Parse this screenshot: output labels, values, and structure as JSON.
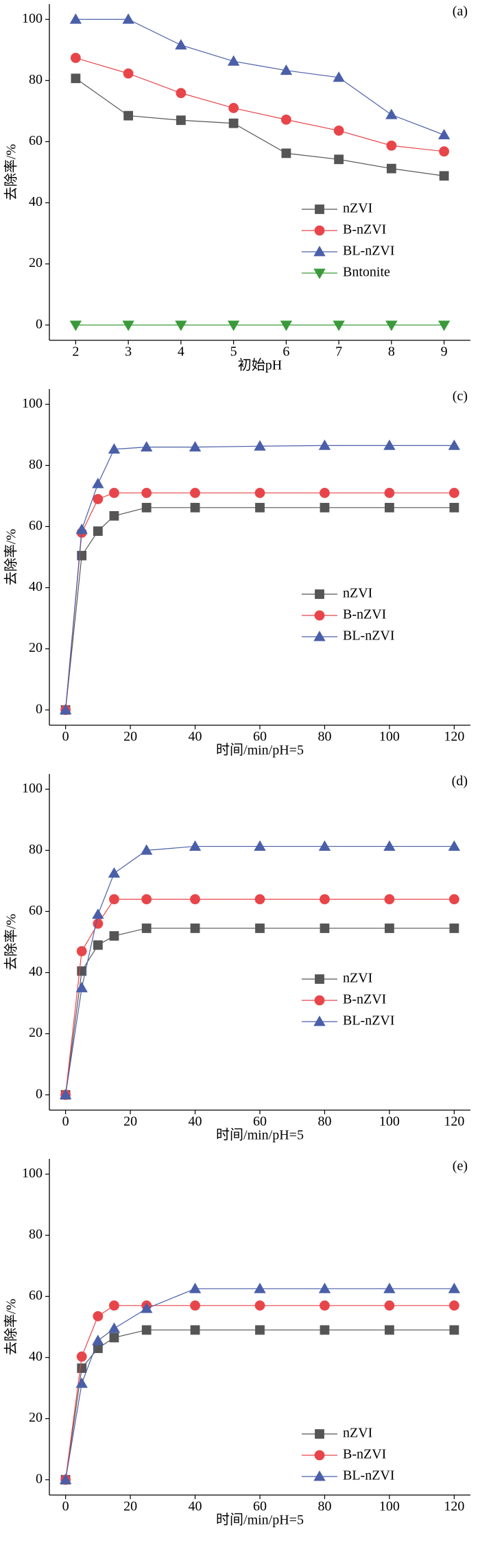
{
  "chart_data": [
    {
      "type": "line",
      "label": "(a)",
      "xlabel": "初始pH",
      "ylabel": "去除率/%",
      "x": [
        2,
        3,
        4,
        5,
        6,
        7,
        8,
        9
      ],
      "xlim": [
        1.5,
        9.5
      ],
      "xticks": [
        2,
        3,
        4,
        5,
        6,
        7,
        8,
        9
      ],
      "ylim": [
        -5,
        105
      ],
      "yticks": [
        0,
        20,
        40,
        60,
        80,
        100
      ],
      "legend": "center right",
      "series": [
        {
          "name": "nZVI",
          "color": "#555555",
          "marker": "square",
          "values": [
            80.7,
            68.5,
            67,
            66,
            56.2,
            54.2,
            51.2,
            48.8
          ]
        },
        {
          "name": "B-nZVI",
          "color": "#e8454a",
          "marker": "circle",
          "values": [
            87.4,
            82.3,
            75.9,
            71,
            67.2,
            63.6,
            58.7,
            56.8
          ]
        },
        {
          "name": "BL-nZVI",
          "color": "#4a5fa8",
          "marker": "triangle-up",
          "values": [
            100,
            100,
            91.6,
            86.3,
            83.3,
            81,
            68.8,
            62.2
          ]
        },
        {
          "name": "Bntonite",
          "color": "#3a9a3a",
          "marker": "triangle-down",
          "values": [
            0,
            0,
            0,
            0,
            0,
            0,
            0,
            0
          ]
        }
      ]
    },
    {
      "type": "line",
      "label": "(c)",
      "xlabel": "时间/min/pH=5",
      "ylabel": "去除率/%",
      "x": [
        0,
        5,
        10,
        15,
        25,
        40,
        60,
        80,
        100,
        120
      ],
      "xlim": [
        -5,
        125
      ],
      "xticks": [
        0,
        20,
        40,
        60,
        80,
        100,
        120
      ],
      "ylim": [
        -5,
        105
      ],
      "yticks": [
        0,
        20,
        40,
        60,
        80,
        100
      ],
      "legend": "center right",
      "series": [
        {
          "name": "nZVI",
          "color": "#555555",
          "marker": "square",
          "values": [
            0,
            50.5,
            58.5,
            63.5,
            66.2,
            66.2,
            66.2,
            66.2,
            66.2,
            66.2
          ]
        },
        {
          "name": "B-nZVI",
          "color": "#e8454a",
          "marker": "circle",
          "values": [
            0,
            58,
            69,
            71,
            71,
            71,
            71,
            71,
            71,
            71
          ]
        },
        {
          "name": "BL-nZVI",
          "color": "#4a5fa8",
          "marker": "triangle-up",
          "values": [
            0,
            59,
            74,
            85.3,
            86,
            86,
            86.3,
            86.5,
            86.5,
            86.5
          ]
        }
      ]
    },
    {
      "type": "line",
      "label": "(d)",
      "xlabel": "时间/min/pH=5",
      "ylabel": "去除率/%",
      "x": [
        0,
        5,
        10,
        15,
        25,
        40,
        60,
        80,
        100,
        120
      ],
      "xlim": [
        -5,
        125
      ],
      "xticks": [
        0,
        20,
        40,
        60,
        80,
        100,
        120
      ],
      "ylim": [
        -5,
        105
      ],
      "yticks": [
        0,
        20,
        40,
        60,
        80,
        100
      ],
      "legend": "center right",
      "series": [
        {
          "name": "nZVI",
          "color": "#555555",
          "marker": "square",
          "values": [
            0,
            40.5,
            49,
            52,
            54.5,
            54.5,
            54.5,
            54.5,
            54.5,
            54.5
          ]
        },
        {
          "name": "B-nZVI",
          "color": "#e8454a",
          "marker": "circle",
          "values": [
            0,
            47,
            56,
            64,
            64,
            64,
            64,
            64,
            64,
            64
          ]
        },
        {
          "name": "BL-nZVI",
          "color": "#4a5fa8",
          "marker": "triangle-up",
          "values": [
            0,
            35,
            59,
            72.5,
            80,
            81.3,
            81.3,
            81.3,
            81.3,
            81.3
          ]
        }
      ]
    },
    {
      "type": "line",
      "label": "(e)",
      "xlabel": "时间/min/pH=5",
      "ylabel": "去除率/%",
      "x": [
        0,
        5,
        10,
        15,
        25,
        40,
        60,
        80,
        100,
        120
      ],
      "xlim": [
        -5,
        125
      ],
      "xticks": [
        0,
        20,
        40,
        60,
        80,
        100,
        120
      ],
      "ylim": [
        -5,
        105
      ],
      "yticks": [
        0,
        20,
        40,
        60,
        80,
        100
      ],
      "legend": "lower right",
      "series": [
        {
          "name": "nZVI",
          "color": "#555555",
          "marker": "square",
          "values": [
            0,
            36.5,
            43,
            46.5,
            49,
            49,
            49,
            49,
            49,
            49
          ]
        },
        {
          "name": "B-nZVI",
          "color": "#e8454a",
          "marker": "circle",
          "values": [
            0,
            40.3,
            53.5,
            57,
            57,
            57,
            57,
            57,
            57,
            57
          ]
        },
        {
          "name": "BL-nZVI",
          "color": "#4a5fa8",
          "marker": "triangle-up",
          "values": [
            0,
            31.5,
            45.5,
            49.5,
            56,
            62.5,
            62.5,
            62.5,
            62.5,
            62.5
          ]
        }
      ]
    }
  ]
}
